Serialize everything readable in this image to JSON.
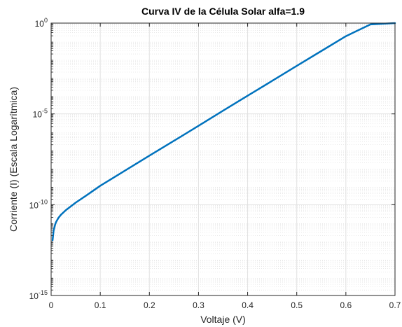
{
  "chart_data": {
    "type": "line",
    "title": "Curva IV de la Célula Solar alfa=1.9",
    "xlabel": "Voltaje (V)",
    "ylabel": "Corriente (I) (Escala Logarítmica)",
    "xlim": [
      0,
      0.7
    ],
    "ylim": [
      1e-15,
      1
    ],
    "yscale": "log",
    "grid": true,
    "minor_grid": true,
    "line_color": "#0072BD",
    "x_ticks": [
      {
        "value": 0,
        "label": "0"
      },
      {
        "value": 0.1,
        "label": "0.1"
      },
      {
        "value": 0.2,
        "label": "0.2"
      },
      {
        "value": 0.3,
        "label": "0.3"
      },
      {
        "value": 0.4,
        "label": "0.4"
      },
      {
        "value": 0.5,
        "label": "0.5"
      },
      {
        "value": 0.6,
        "label": "0.6"
      },
      {
        "value": 0.7,
        "label": "0.7"
      }
    ],
    "y_ticks": [
      {
        "value": 1e-15,
        "base": "10",
        "exp": "-15"
      },
      {
        "value": 1e-10,
        "base": "10",
        "exp": "-10"
      },
      {
        "value": 1e-05,
        "base": "10",
        "exp": "-5"
      },
      {
        "value": 1,
        "base": "10",
        "exp": "0"
      }
    ],
    "series": [
      {
        "x": [
          0.003,
          0.005,
          0.008,
          0.01,
          0.015,
          0.02,
          0.03,
          0.04,
          0.05,
          0.07,
          0.1,
          0.15,
          0.2,
          0.25,
          0.3,
          0.35,
          0.4,
          0.45,
          0.5,
          0.55,
          0.6,
          0.65,
          0.7
        ],
        "y": [
          1.1e-12,
          3.7e-12,
          7.8e-12,
          1.1e-11,
          1.9e-11,
          2.8e-11,
          5e-11,
          8.1e-11,
          1.3e-10,
          3e-10,
          1.1e-09,
          7.4e-09,
          5e-08,
          3.3e-07,
          2.2e-06,
          1.5e-05,
          0.0001,
          0.00066,
          0.0044,
          0.029,
          0.19,
          0.85,
          1.3
        ]
      }
    ]
  }
}
